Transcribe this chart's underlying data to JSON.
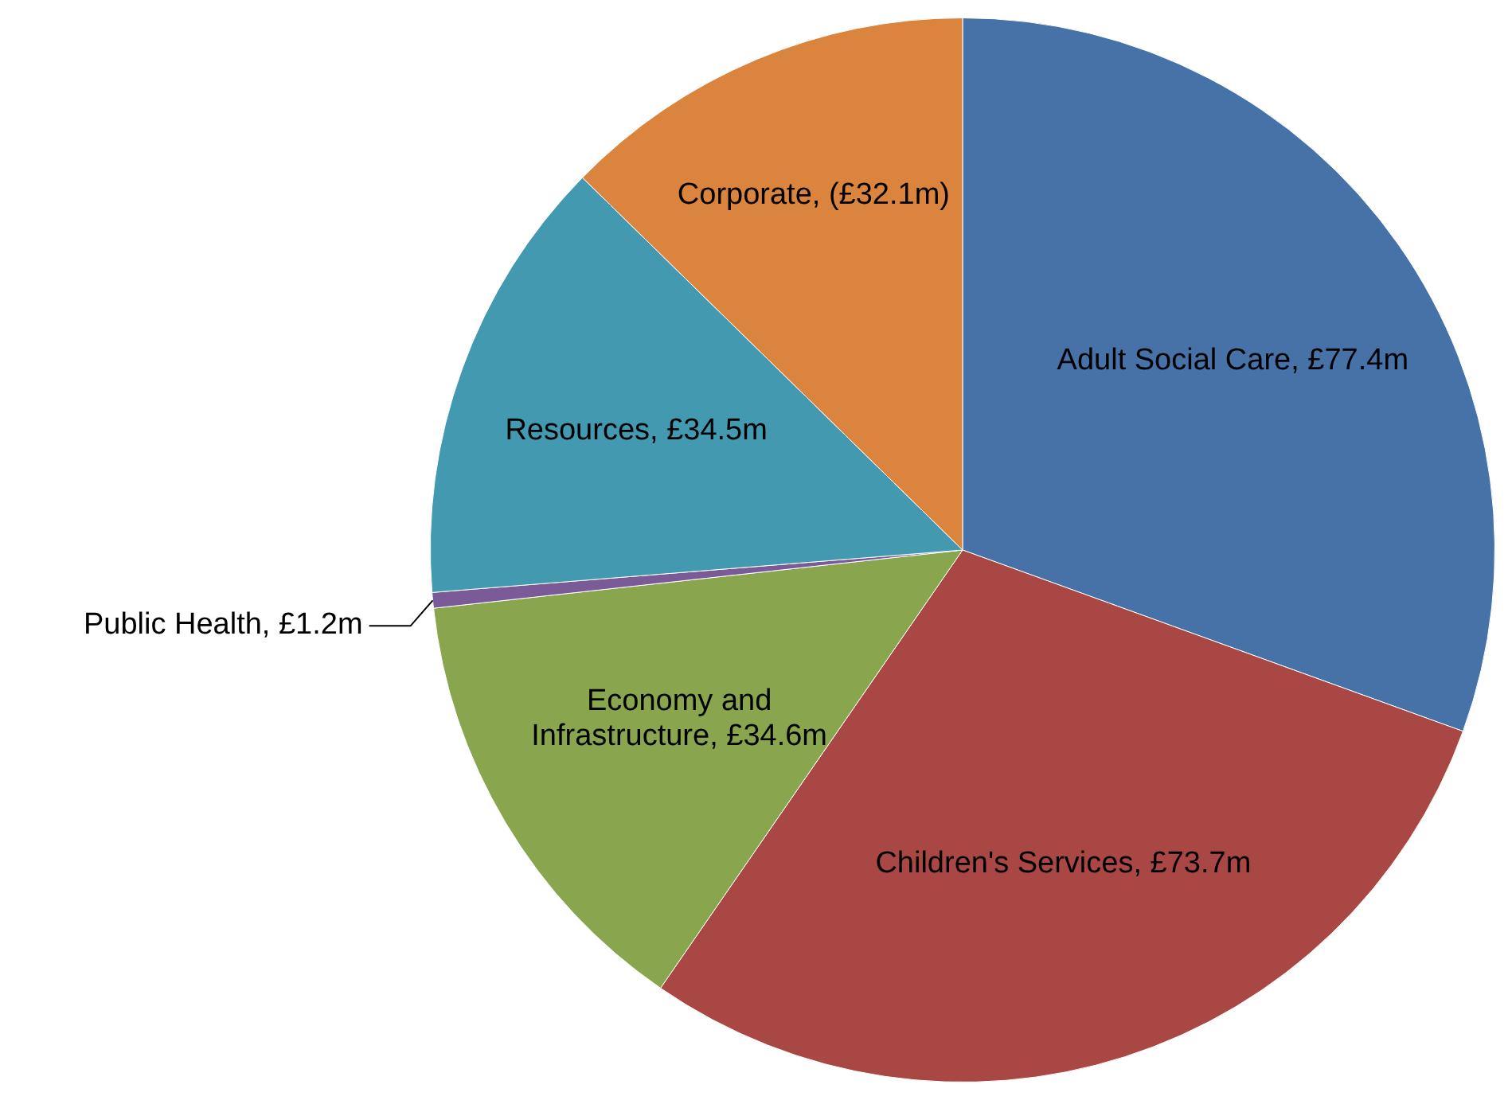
{
  "chart_data": {
    "type": "pie",
    "categories": [
      "Adult Social Care",
      "Children's Services",
      "Economy and Infrastructure",
      "Public Health",
      "Resources",
      "Corporate"
    ],
    "values": [
      77.4,
      73.7,
      34.6,
      1.2,
      34.5,
      32.1
    ],
    "value_labels": [
      "£77.4m",
      "£73.7m",
      "£34.6m",
      "£1.2m",
      "£34.5m",
      "(£32.1m)"
    ],
    "colors": [
      "#4672a8",
      "#a94744",
      "#89a54e",
      "#7a5b98",
      "#4299b0",
      "#db843d"
    ],
    "legend": false
  }
}
